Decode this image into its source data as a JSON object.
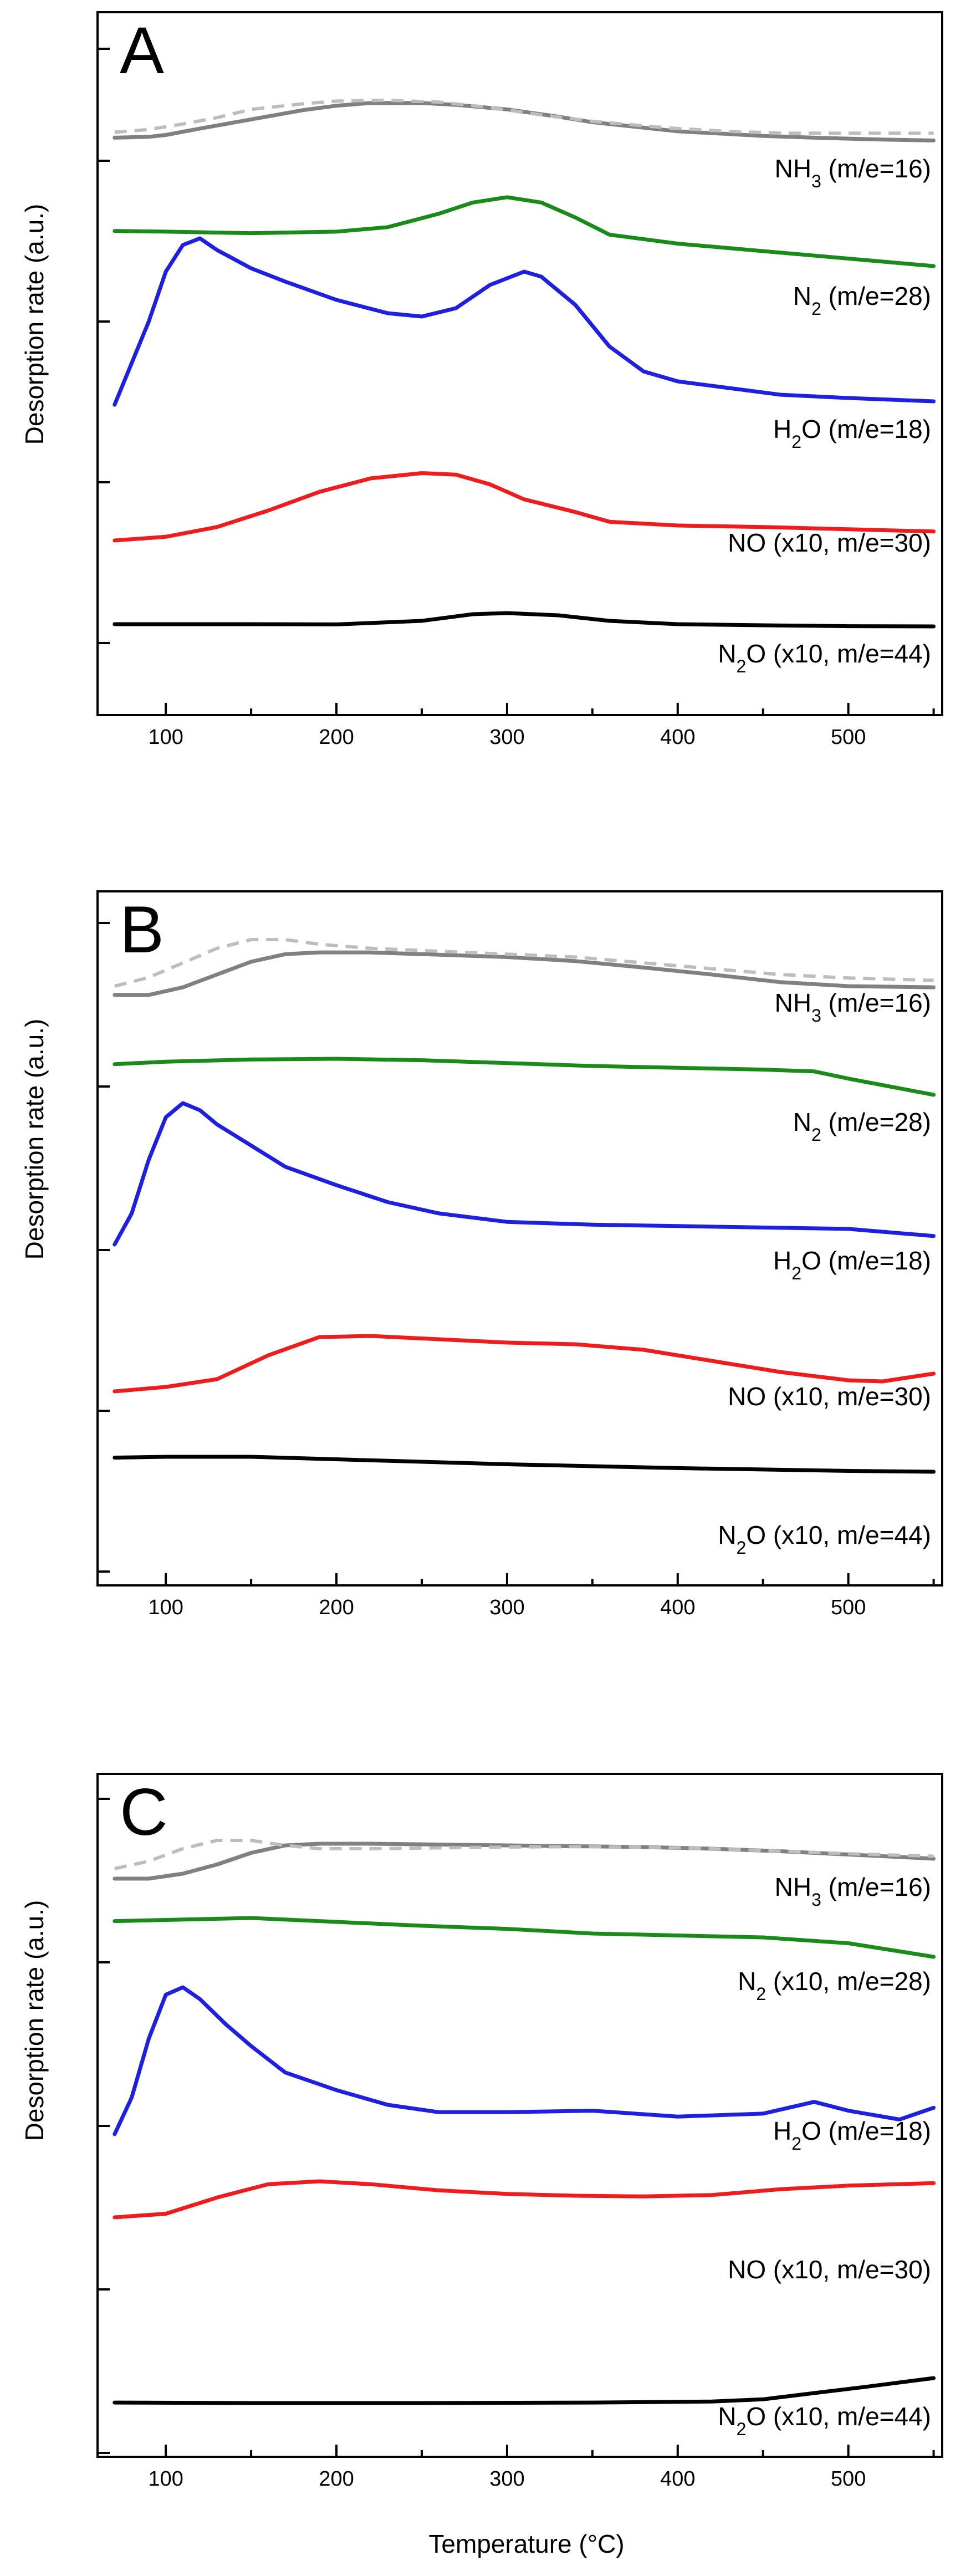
{
  "chart_data": {
    "type": "line",
    "xlabel": "Temperature (°C)",
    "ylabel": "Desorption rate (a.u.)",
    "xlim": [
      60,
      555
    ],
    "xticks": [
      100,
      200,
      300,
      400,
      500
    ],
    "colors": {
      "NH3": "#808080",
      "NH3_ref": "#bdbdbd",
      "N2": "#1a8a1a",
      "H2O": "#1f1fe0",
      "NO": "#ee1c1c",
      "N2O": "#000000"
    },
    "panels": [
      {
        "id": "A",
        "letter": "A",
        "series": [
          {
            "key": "NH3",
            "label_base": "NH",
            "label_sub": "3",
            "label_tail": " (m/e=16)",
            "style": "solid",
            "x": [
              70,
              90,
              100,
              120,
              150,
              180,
              200,
              220,
              250,
              270,
              300,
              330,
              350,
              380,
              400,
              430,
              450,
              480,
              500,
              520,
              550
            ],
            "y": [
              0.07,
              0.08,
              0.1,
              0.17,
              0.27,
              0.37,
              0.42,
              0.45,
              0.45,
              0.43,
              0.38,
              0.3,
              0.24,
              0.18,
              0.14,
              0.11,
              0.09,
              0.07,
              0.06,
              0.05,
              0.04
            ]
          },
          {
            "key": "NH3_ref",
            "label_base": "",
            "label_sub": "",
            "label_tail": "",
            "style": "dashed",
            "x": [
              70,
              90,
              110,
              130,
              150,
              180,
              200,
              230,
              260,
              290,
              320,
              350,
              380,
              400,
              430,
              460,
              500,
              550
            ],
            "y": [
              0.13,
              0.16,
              0.22,
              0.29,
              0.38,
              0.44,
              0.47,
              0.48,
              0.46,
              0.4,
              0.32,
              0.25,
              0.2,
              0.17,
              0.14,
              0.12,
              0.12,
              0.12
            ]
          },
          {
            "key": "N2",
            "label_base": "N",
            "label_sub": "2",
            "label_tail": " (m/e=28)",
            "style": "solid",
            "x": [
              70,
              100,
              150,
              200,
              230,
              260,
              280,
              300,
              320,
              340,
              360,
              400,
              450,
              500,
              550
            ],
            "y": [
              0.47,
              0.46,
              0.44,
              0.46,
              0.52,
              0.7,
              0.85,
              0.92,
              0.85,
              0.65,
              0.42,
              0.3,
              0.2,
              0.1,
              0.0
            ]
          },
          {
            "key": "H2O",
            "label_base": "H",
            "label_sub": "2",
            "label_tail": "O (m/e=18)",
            "style": "solid",
            "x": [
              70,
              80,
              90,
              100,
              110,
              120,
              130,
              150,
              170,
              200,
              230,
              250,
              270,
              290,
              310,
              320,
              340,
              360,
              380,
              400,
              430,
              460,
              500,
              550
            ],
            "y": [
              0.0,
              0.25,
              0.5,
              0.8,
              0.96,
              1.0,
              0.93,
              0.82,
              0.74,
              0.63,
              0.55,
              0.53,
              0.58,
              0.72,
              0.8,
              0.77,
              0.6,
              0.35,
              0.2,
              0.14,
              0.1,
              0.06,
              0.04,
              0.02
            ]
          },
          {
            "key": "NO",
            "label_base": "NO",
            "label_sub": "",
            "label_tail": " (x10, m/e=30)",
            "style": "solid",
            "x": [
              70,
              100,
              130,
              160,
              190,
              220,
              250,
              270,
              290,
              310,
              340,
              360,
              400,
              450,
              500,
              550
            ],
            "y": [
              0.0,
              0.05,
              0.18,
              0.4,
              0.65,
              0.83,
              0.9,
              0.88,
              0.75,
              0.55,
              0.38,
              0.25,
              0.2,
              0.18,
              0.15,
              0.12
            ]
          },
          {
            "key": "N2O",
            "label_base": "N",
            "label_sub": "2",
            "label_tail": "O (x10, m/e=44)",
            "style": "solid",
            "x": [
              70,
              150,
              200,
              250,
              280,
              300,
              330,
              360,
              400,
              450,
              500,
              550
            ],
            "y": [
              0.1,
              0.1,
              0.09,
              0.25,
              0.55,
              0.6,
              0.5,
              0.25,
              0.1,
              0.05,
              0.01,
              0.0
            ]
          }
        ]
      },
      {
        "id": "B",
        "letter": "B",
        "series": [
          {
            "key": "NH3",
            "label_base": "NH",
            "label_sub": "3",
            "label_tail": " (m/e=16)",
            "style": "solid",
            "x": [
              70,
              90,
              110,
              130,
              150,
              170,
              190,
              220,
              260,
              300,
              340,
              380,
              420,
              460,
              500,
              550
            ],
            "y": [
              0.05,
              0.05,
              0.18,
              0.4,
              0.62,
              0.75,
              0.78,
              0.78,
              0.74,
              0.7,
              0.63,
              0.52,
              0.4,
              0.27,
              0.2,
              0.18
            ]
          },
          {
            "key": "NH3_ref",
            "label_base": "",
            "label_sub": "",
            "label_tail": "",
            "style": "dashed",
            "x": [
              70,
              90,
              110,
              130,
              150,
              170,
              190,
              220,
              260,
              300,
              340,
              380,
              420,
              460,
              500,
              550
            ],
            "y": [
              0.2,
              0.35,
              0.6,
              0.85,
              1.0,
              1.0,
              0.92,
              0.85,
              0.8,
              0.75,
              0.7,
              0.6,
              0.5,
              0.4,
              0.34,
              0.3
            ]
          },
          {
            "key": "N2",
            "label_base": "N",
            "label_sub": "2",
            "label_tail": " (m/e=28)",
            "style": "solid",
            "x": [
              70,
              100,
              150,
              200,
              250,
              300,
              350,
              400,
              450,
              480,
              500,
              550
            ],
            "y": [
              0.85,
              0.92,
              0.98,
              1.0,
              0.96,
              0.88,
              0.8,
              0.75,
              0.7,
              0.65,
              0.45,
              0.0
            ]
          },
          {
            "key": "H2O",
            "label_base": "H",
            "label_sub": "2",
            "label_tail": "O (m/e=18)",
            "style": "solid",
            "x": [
              70,
              80,
              90,
              100,
              110,
              120,
              130,
              150,
              170,
              200,
              230,
              260,
              300,
              350,
              400,
              450,
              500,
              530,
              550
            ],
            "y": [
              0.0,
              0.22,
              0.6,
              0.9,
              1.0,
              0.95,
              0.85,
              0.7,
              0.55,
              0.42,
              0.3,
              0.22,
              0.16,
              0.14,
              0.13,
              0.12,
              0.11,
              0.08,
              0.06
            ]
          },
          {
            "key": "NO",
            "label_base": "NO",
            "label_sub": "",
            "label_tail": " (x10, m/e=30)",
            "style": "solid",
            "x": [
              70,
              100,
              130,
              160,
              190,
              220,
              260,
              300,
              340,
              380,
              420,
              460,
              500,
              520,
              550
            ],
            "y": [
              0.0,
              0.08,
              0.22,
              0.65,
              0.98,
              1.0,
              0.94,
              0.88,
              0.85,
              0.75,
              0.55,
              0.35,
              0.2,
              0.18,
              0.32
            ]
          },
          {
            "key": "N2O",
            "label_base": "N",
            "label_sub": "2",
            "label_tail": "O (x10, m/e=44)",
            "style": "solid",
            "x": [
              70,
              100,
              150,
              200,
              300,
              400,
              500,
              550
            ],
            "y": [
              0.85,
              0.9,
              0.9,
              0.75,
              0.45,
              0.22,
              0.05,
              0.0
            ]
          }
        ]
      },
      {
        "id": "C",
        "letter": "C",
        "series": [
          {
            "key": "NH3",
            "label_base": "NH",
            "label_sub": "3",
            "label_tail": " (m/e=16)",
            "style": "solid",
            "x": [
              70,
              90,
              110,
              130,
              150,
              170,
              190,
              220,
              260,
              300,
              340,
              380,
              420,
              460,
              500,
              550
            ],
            "y": [
              0.08,
              0.08,
              0.2,
              0.42,
              0.7,
              0.88,
              0.92,
              0.92,
              0.9,
              0.88,
              0.86,
              0.84,
              0.8,
              0.74,
              0.66,
              0.56
            ]
          },
          {
            "key": "NH3_ref",
            "label_base": "",
            "label_sub": "",
            "label_tail": "",
            "style": "dashed",
            "x": [
              70,
              90,
              110,
              130,
              150,
              170,
              190,
              220,
              260,
              300,
              340,
              380,
              420,
              460,
              500,
              550
            ],
            "y": [
              0.32,
              0.5,
              0.8,
              1.0,
              1.0,
              0.88,
              0.8,
              0.8,
              0.82,
              0.84,
              0.85,
              0.84,
              0.8,
              0.74,
              0.68,
              0.62
            ]
          },
          {
            "key": "N2",
            "label_base": "N",
            "label_sub": "2",
            "label_tail": " (x10, m/e=28)",
            "style": "solid",
            "x": [
              70,
              100,
              150,
              200,
              250,
              300,
              350,
              400,
              450,
              500,
              550
            ],
            "y": [
              0.92,
              0.95,
              1.0,
              0.9,
              0.8,
              0.72,
              0.6,
              0.55,
              0.5,
              0.35,
              0.0
            ]
          },
          {
            "key": "H2O",
            "label_base": "H",
            "label_sub": "2",
            "label_tail": "O (m/e=18)",
            "style": "solid",
            "x": [
              70,
              80,
              90,
              100,
              110,
              120,
              135,
              150,
              170,
              200,
              230,
              260,
              300,
              350,
              400,
              450,
              480,
              500,
              530,
              550
            ],
            "y": [
              0.0,
              0.25,
              0.65,
              0.95,
              1.0,
              0.92,
              0.75,
              0.6,
              0.42,
              0.3,
              0.2,
              0.15,
              0.15,
              0.16,
              0.12,
              0.14,
              0.22,
              0.16,
              0.1,
              0.18
            ]
          },
          {
            "key": "NO",
            "label_base": "NO",
            "label_sub": "",
            "label_tail": " (x10, m/e=30)",
            "style": "solid",
            "x": [
              70,
              100,
              130,
              160,
              190,
              220,
              260,
              300,
              340,
              380,
              420,
              460,
              500,
              550
            ],
            "y": [
              0.0,
              0.1,
              0.55,
              0.92,
              1.0,
              0.92,
              0.75,
              0.65,
              0.6,
              0.58,
              0.62,
              0.78,
              0.88,
              0.95
            ]
          },
          {
            "key": "N2O",
            "label_base": "N",
            "label_sub": "2",
            "label_tail": "O (x10, m/e=44)",
            "style": "solid",
            "x": [
              70,
              150,
              250,
              350,
              420,
              450,
              480,
              510,
              550
            ],
            "y": [
              0.02,
              0.0,
              0.0,
              0.02,
              0.06,
              0.15,
              0.4,
              0.65,
              1.0
            ]
          }
        ]
      }
    ]
  }
}
